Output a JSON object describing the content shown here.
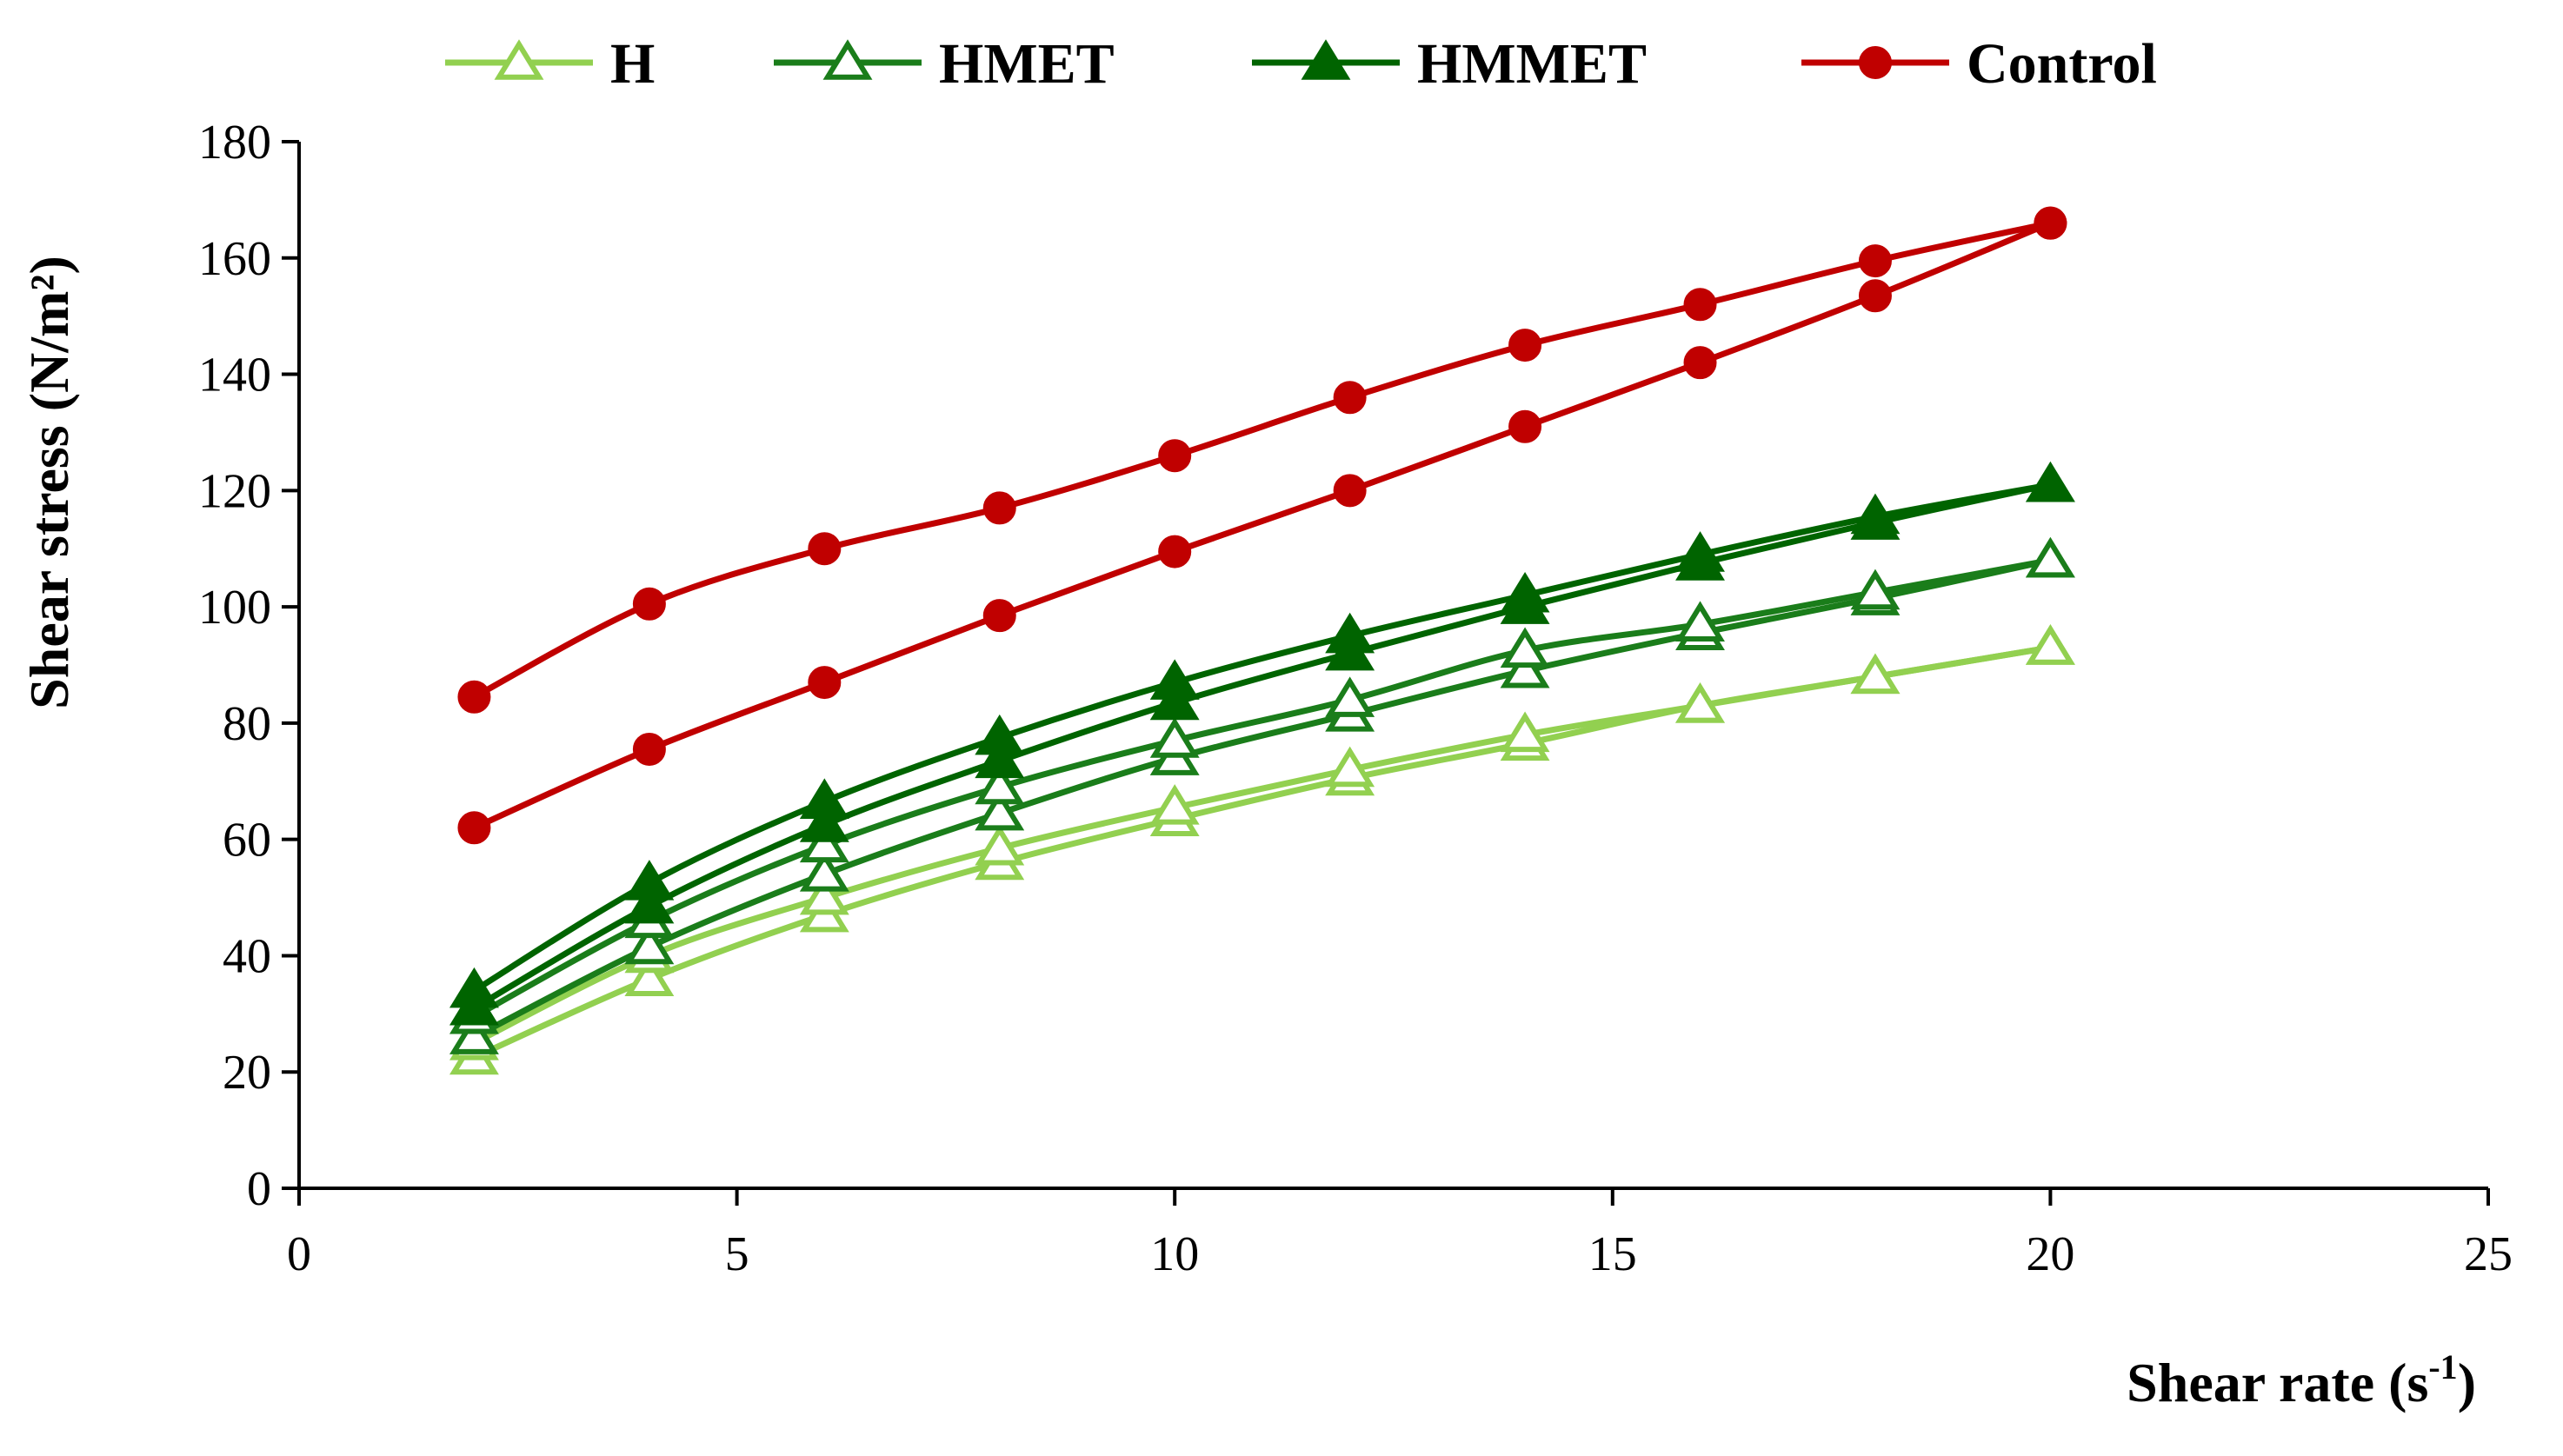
{
  "chart_data": {
    "type": "line",
    "xlabel": "Shear rate (s",
    "xlabel_sup": "-1",
    "xlabel_end": ")",
    "ylabel": "Shear stress (N/m²)",
    "xlim": [
      0,
      25
    ],
    "ylim": [
      0,
      180
    ],
    "xticks": [
      0,
      5,
      10,
      15,
      20,
      25
    ],
    "yticks": [
      0,
      20,
      40,
      60,
      80,
      100,
      120,
      140,
      160,
      180
    ],
    "grid": false,
    "legend_position": "top",
    "series": [
      {
        "name": "H",
        "color": "#92d050",
        "marker": "triangle-open",
        "branches": [
          {
            "x": [
              2,
              4,
              6,
              8,
              10,
              12,
              14,
              16,
              18,
              20
            ],
            "y": [
              22.5,
              36,
              47,
              56,
              63.5,
              70.5,
              76.5,
              83,
              88,
              93
            ]
          },
          {
            "x": [
              2,
              4,
              6,
              8,
              10,
              12,
              14,
              16,
              18,
              20
            ],
            "y": [
              25,
              40,
              50,
              58.5,
              65.5,
              72,
              78,
              83,
              88,
              93
            ]
          }
        ]
      },
      {
        "name": "HMET",
        "color": "#1a7d1a",
        "marker": "triangle-open",
        "branches": [
          {
            "x": [
              2,
              4,
              6,
              8,
              10,
              12,
              14,
              16,
              18,
              20
            ],
            "y": [
              26,
              41.5,
              54,
              64.5,
              74,
              81.5,
              89,
              95.5,
              101.5,
              108
            ]
          },
          {
            "x": [
              2,
              4,
              6,
              8,
              10,
              12,
              14,
              16,
              18,
              20
            ],
            "y": [
              29.5,
              46,
              59,
              69,
              77,
              84,
              92.5,
              97,
              102.5,
              108
            ]
          }
        ]
      },
      {
        "name": "HMMET",
        "color": "#006400",
        "marker": "triangle-filled",
        "branches": [
          {
            "x": [
              2,
              4,
              6,
              8,
              10,
              12,
              14,
              16,
              18,
              20
            ],
            "y": [
              31,
              48.5,
              62.5,
              73.5,
              83.5,
              92,
              100,
              107.5,
              114.5,
              121
            ]
          },
          {
            "x": [
              2,
              4,
              6,
              8,
              10,
              12,
              14,
              16,
              18,
              20
            ],
            "y": [
              34,
              52.5,
              66.5,
              77.5,
              87,
              95,
              102,
              109,
              115.5,
              121
            ]
          }
        ]
      },
      {
        "name": "Control",
        "color": "#c00000",
        "marker": "circle-filled",
        "branches": [
          {
            "x": [
              2,
              4,
              6,
              8,
              10,
              12,
              14,
              16,
              18,
              20
            ],
            "y": [
              62,
              75.5,
              87,
              98.5,
              109.5,
              120,
              131,
              142,
              153.5,
              166
            ]
          },
          {
            "x": [
              2,
              4,
              6,
              8,
              10,
              12,
              14,
              16,
              18,
              20
            ],
            "y": [
              84.5,
              100.5,
              110,
              117,
              126,
              136,
              145,
              152,
              159.5,
              166
            ]
          }
        ]
      }
    ]
  }
}
